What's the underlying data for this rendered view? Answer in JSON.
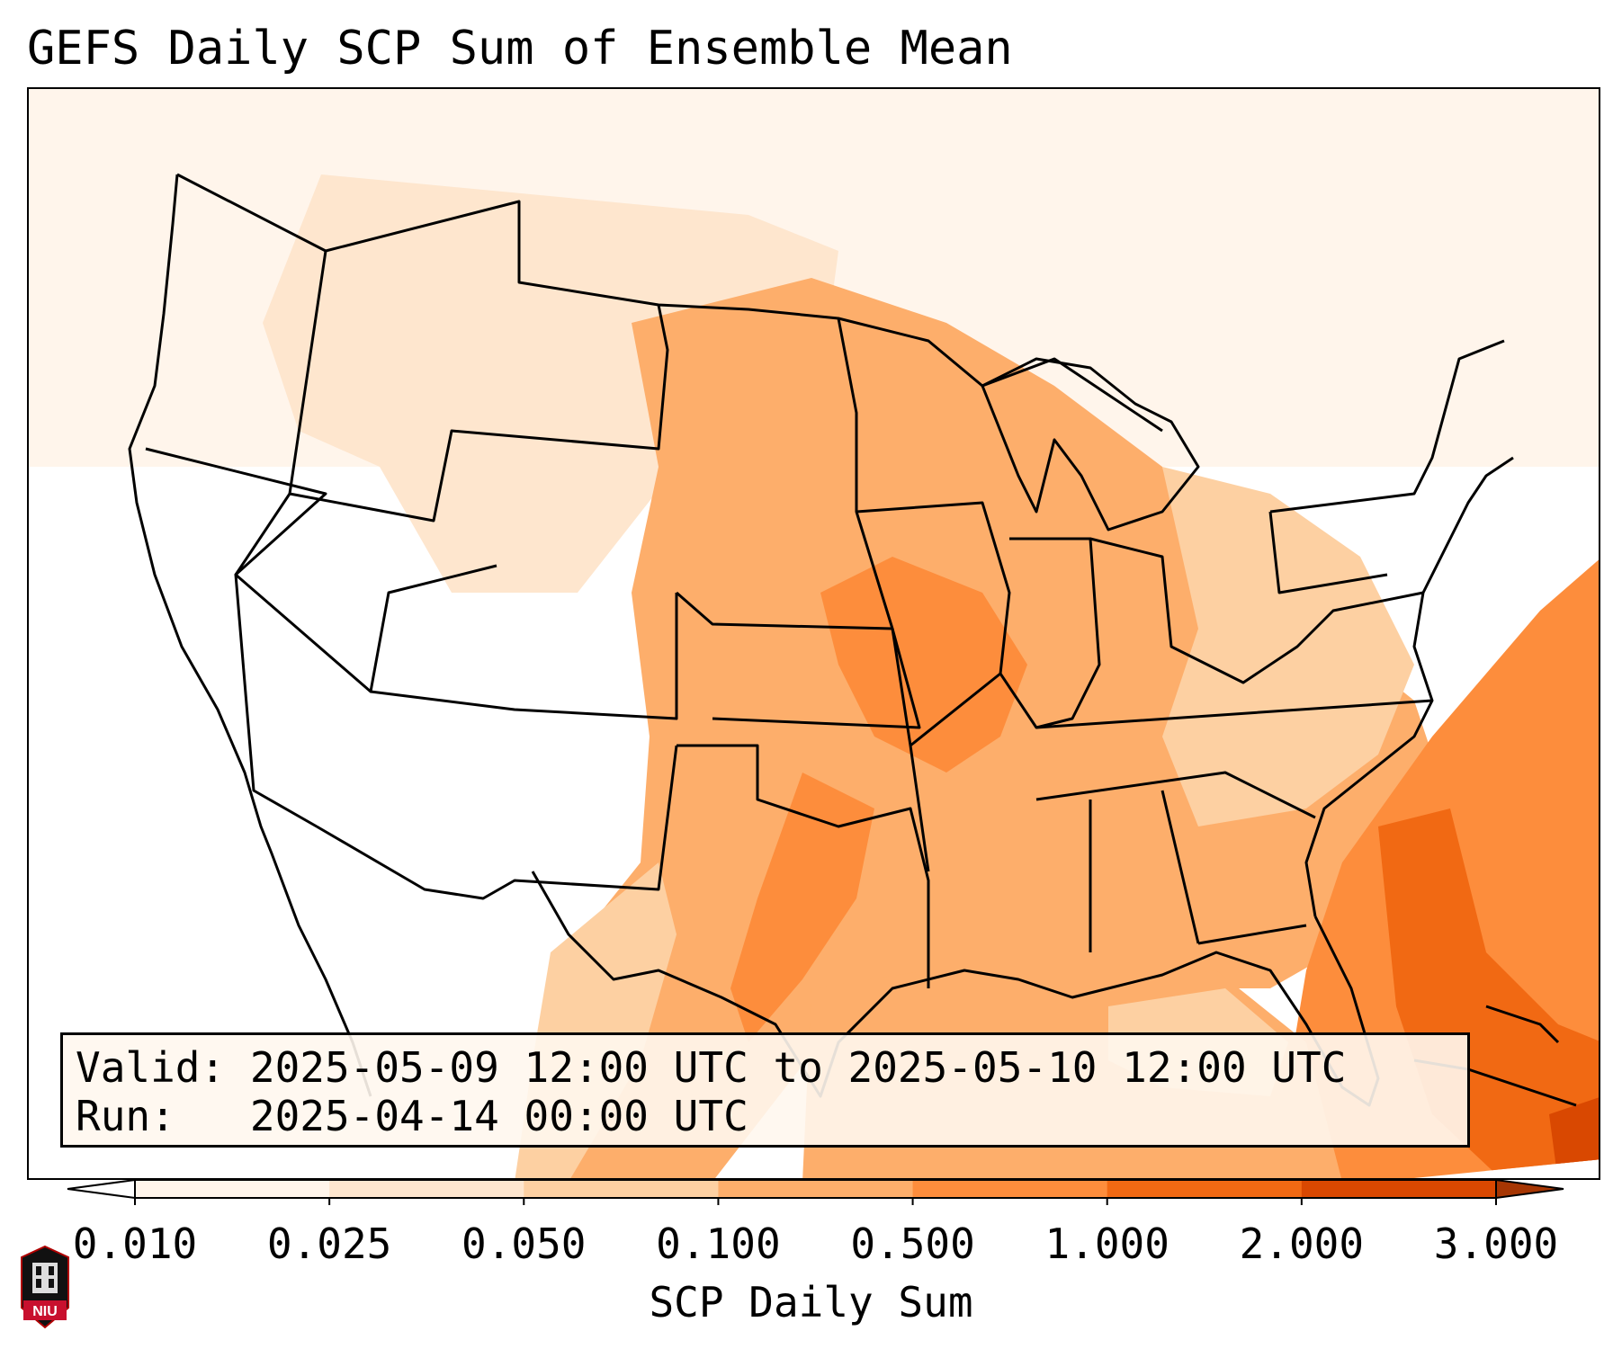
{
  "title": "GEFS Daily SCP Sum of Ensemble Mean",
  "info": {
    "valid_label": "Valid:",
    "valid_value": "2025-05-09 12:00 UTC to 2025-05-10 12:00 UTC",
    "run_label": "Run:",
    "run_value": "2025-04-14 00:00 UTC"
  },
  "colorbar": {
    "label": "SCP Daily Sum",
    "ticks": [
      "0.010",
      "0.025",
      "0.050",
      "0.100",
      "0.500",
      "1.000",
      "2.000",
      "3.000"
    ],
    "colors": [
      "#fff5eb",
      "#fee6ce",
      "#fdd0a2",
      "#fdae6b",
      "#fd8d3c",
      "#f16913",
      "#d94801"
    ],
    "under_color": "#ffffff",
    "over_color": "#a63603",
    "extend": "both"
  },
  "logo": {
    "text": "NIU"
  }
}
